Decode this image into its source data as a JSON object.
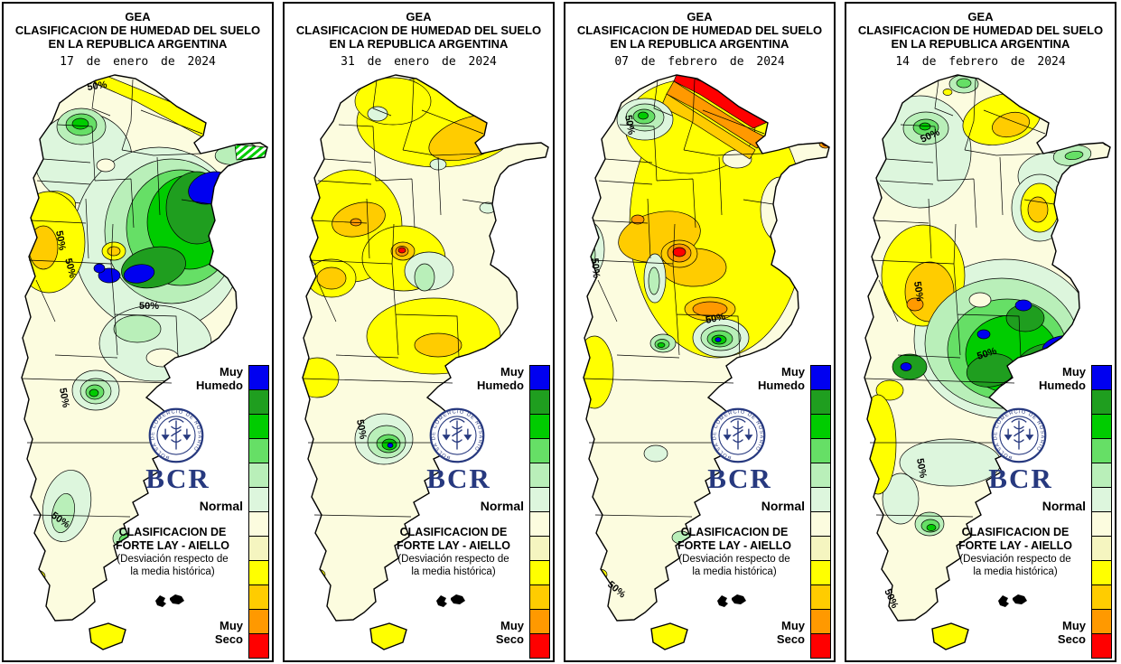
{
  "page": {
    "background": "#ffffff",
    "panel_border": "#000000"
  },
  "shared": {
    "title_line1": "GEA",
    "title_line2": "CLASIFICACION DE HUMEDAD DEL SUELO",
    "title_line3": "EN LA REPUBLICA ARGENTINA",
    "legend": {
      "label_top_1": "Muy",
      "label_top_2": "Humedo",
      "label_mid": "Normal",
      "label_bottom_1": "Muy",
      "label_bottom_2": "Seco",
      "colors": [
        "#0000f0",
        "#1f9e1f",
        "#00cc00",
        "#66df66",
        "#b9efb9",
        "#ddf6dd",
        "#fcfcdf",
        "#f5f5c0",
        "#ffff00",
        "#ffcc00",
        "#ff9900",
        "#ff0000"
      ],
      "scale_anchors": [
        "Muy Humedo (azul)",
        "Normal (crema)",
        "Muy Seco (rojo)"
      ]
    },
    "logo": {
      "acronym": "BCR",
      "seal_text": "BOLSA DE COMERCIO DE ROSARIO",
      "color": "#27397f"
    },
    "classification": {
      "line1": "CLASIFICACION DE",
      "line2": "FORTE LAY - AIELLO",
      "line3": "(Desviación respecto de",
      "line4": "la media histórica)"
    }
  },
  "panels": [
    {
      "date": "17 de enero de 2024",
      "visual_summary": "Núcleo muy húmedo (azul/verde) sobre la región pampeana centro-este; amarillo seco en el norte y el oeste.",
      "contour_labels": [
        {
          "text": "50%"
        },
        {
          "text": "50%"
        },
        {
          "text": "50%"
        },
        {
          "text": "50%"
        },
        {
          "text": "50%"
        },
        {
          "text": "50%"
        }
      ]
    },
    {
      "date": "31 de enero de 2024",
      "visual_summary": "Amarillo/dorado seco en casi todo el norte y centro; pequeño foco húmedo verde en la costa norpatagónica.",
      "contour_labels": [
        {
          "text": "50%"
        }
      ]
    },
    {
      "date": "07 de febrero de 2024",
      "visual_summary": "Muy seco: rojo/naranja en el extremo noreste, amarillo en el centro; focos verdes en el noroeste y sur de Buenos Aires.",
      "contour_labels": [
        {
          "text": "50%"
        },
        {
          "text": "50%"
        },
        {
          "text": "50%"
        },
        {
          "text": "50%"
        }
      ]
    },
    {
      "date": "14 de febrero de 2024",
      "visual_summary": "Núcleo húmedo verde/azul sobre Buenos Aires y la pampa central; amarillo/dorado en el oeste y noreste.",
      "contour_labels": [
        {
          "text": "50%"
        },
        {
          "text": "50%"
        },
        {
          "text": "50%"
        },
        {
          "text": "50%"
        },
        {
          "text": "50%"
        }
      ]
    }
  ]
}
